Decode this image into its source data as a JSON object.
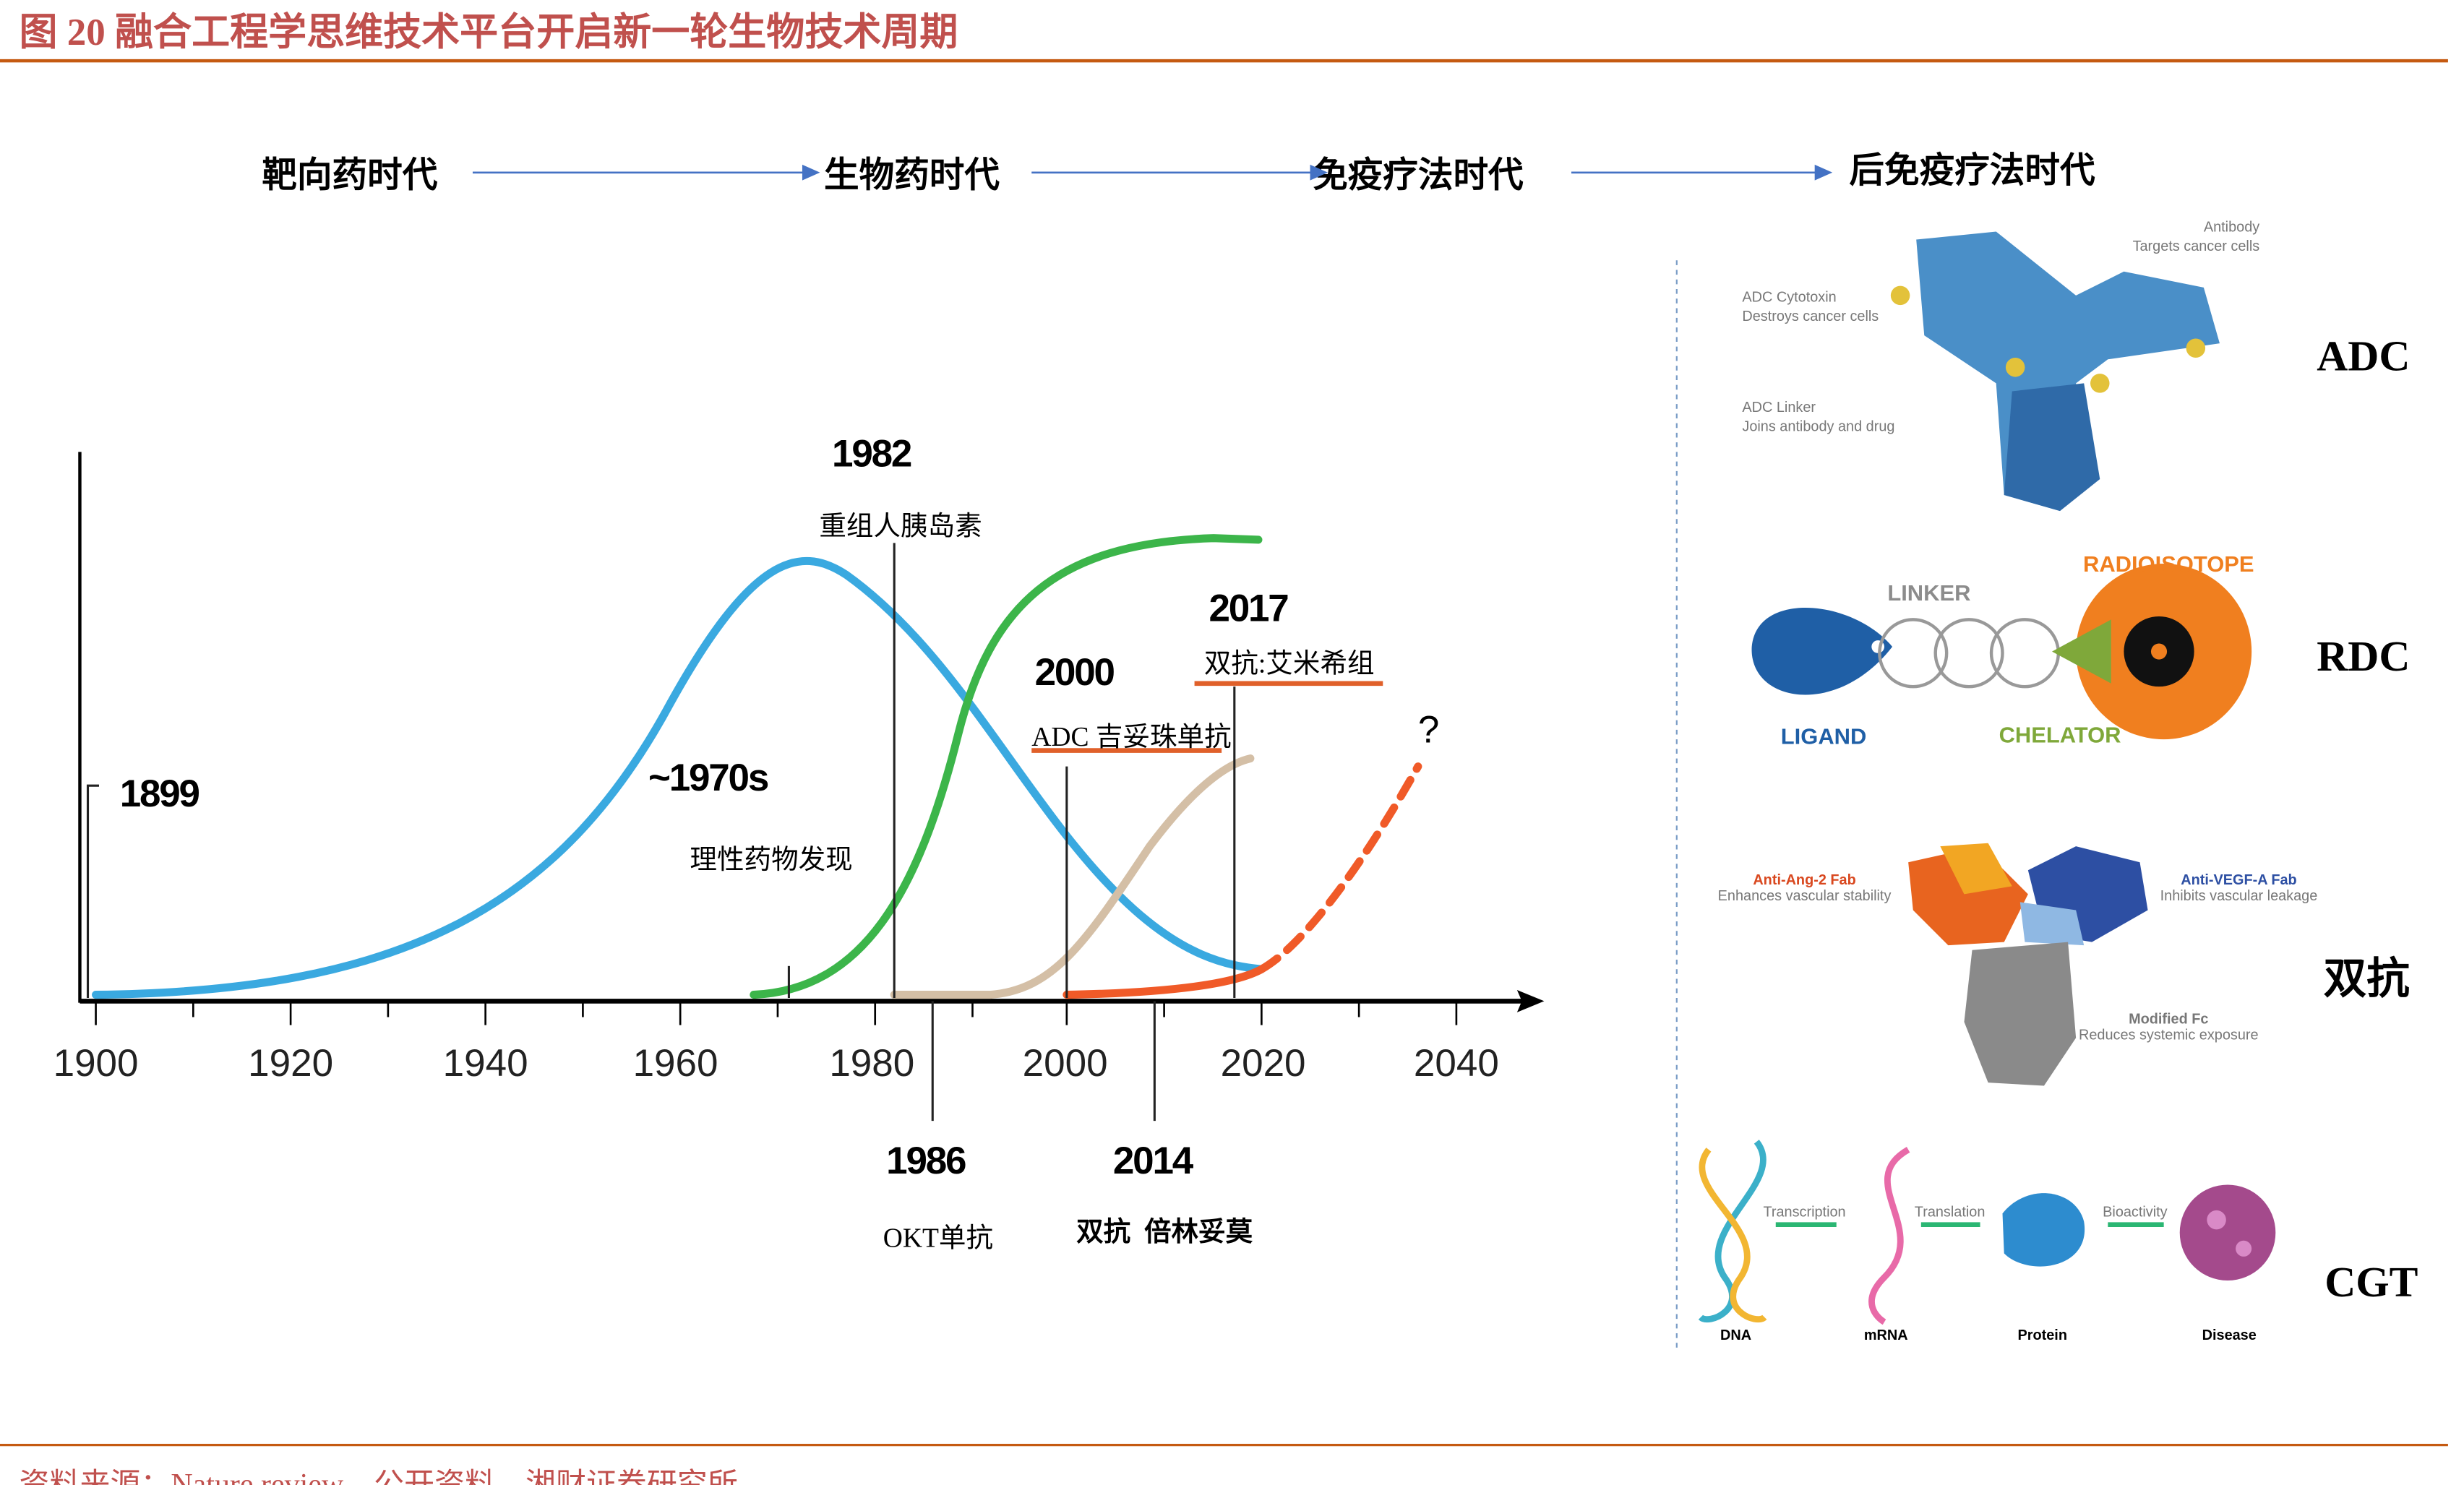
{
  "header": {
    "title": "图 20 融合工程学思维技术平台开启新一轮生物技术周期"
  },
  "eras": [
    "靶向药时代",
    "生物药时代",
    "免疫疗法时代",
    "后免疫疗法时代"
  ],
  "timeline": {
    "axis_labels": [
      "1900",
      "1920",
      "1940",
      "1960",
      "1980",
      "2000",
      "2020",
      "2040"
    ],
    "milestones": [
      {
        "year": "1899"
      },
      {
        "year": "~1970s",
        "label": "理性药物发现"
      },
      {
        "year": "1982",
        "label": "重组人胰岛素"
      },
      {
        "year": "1986",
        "label": "OKT单抗"
      },
      {
        "year": "2000",
        "label": "ADC 吉妥珠单抗"
      },
      {
        "year": "2014",
        "label": "双抗  倍林妥莫"
      },
      {
        "year": "2017",
        "label": "双抗:艾米希组"
      }
    ],
    "future": "?"
  },
  "panels": [
    {
      "label": "ADC",
      "texts": [
        "Antibody",
        "Targets cancer cells",
        "ADC Cytotoxin",
        "Destroys cancer cells",
        "ADC Linker",
        "Joins antibody and drug"
      ]
    },
    {
      "label": "RDC",
      "texts": [
        "LINKER",
        "RADIOISOTOPE",
        "LIGAND",
        "CHELATOR"
      ]
    },
    {
      "label": "双抗",
      "texts": [
        "Anti-Ang-2 Fab",
        "Enhances vascular stability",
        "Anti-VEGF-A Fab",
        "Inhibits vascular leakage",
        "Modified Fc",
        "Reduces systemic exposure"
      ]
    },
    {
      "label": "CGT",
      "texts": [
        "DNA",
        "mRNA",
        "Protein",
        "Disease",
        "Transcription",
        "Translation",
        "Bioactivity"
      ]
    }
  ],
  "source": "资料来源：Nature review、公开资料、湘财证券研究所"
}
